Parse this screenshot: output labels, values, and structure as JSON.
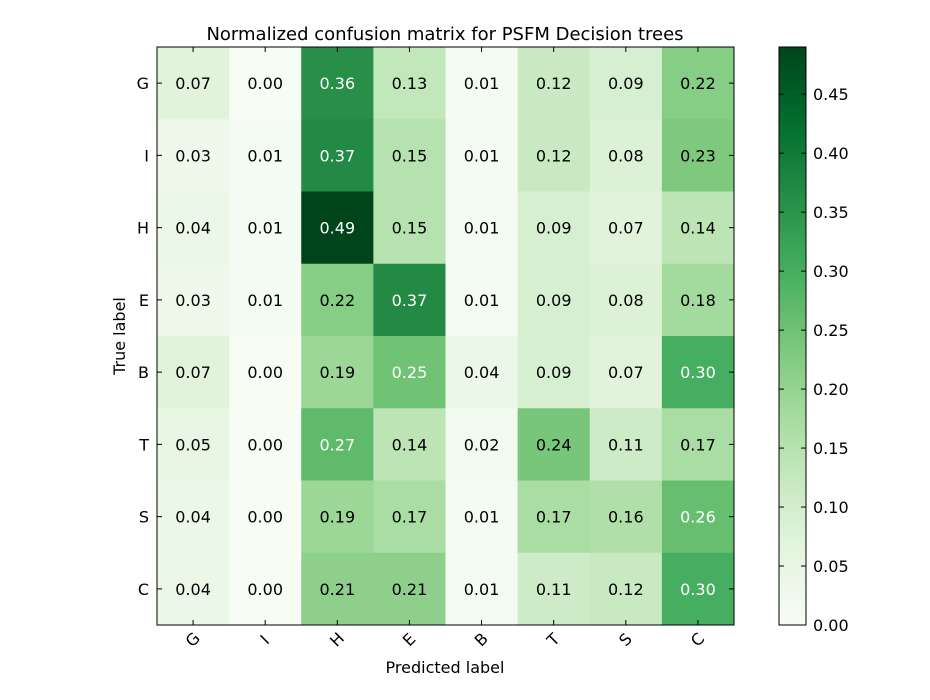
{
  "chart_data": {
    "type": "heatmap",
    "title": "Normalized confusion matrix for PSFM Decision trees",
    "xlabel": "Predicted label",
    "ylabel": "True label",
    "row_labels": [
      "G",
      "I",
      "H",
      "E",
      "B",
      "T",
      "S",
      "C"
    ],
    "col_labels": [
      "G",
      "I",
      "H",
      "E",
      "B",
      "T",
      "S",
      "C"
    ],
    "values": [
      [
        0.07,
        0.0,
        0.36,
        0.13,
        0.01,
        0.12,
        0.09,
        0.22
      ],
      [
        0.03,
        0.01,
        0.37,
        0.15,
        0.01,
        0.12,
        0.08,
        0.23
      ],
      [
        0.04,
        0.01,
        0.49,
        0.15,
        0.01,
        0.09,
        0.07,
        0.14
      ],
      [
        0.03,
        0.01,
        0.22,
        0.37,
        0.01,
        0.09,
        0.08,
        0.18
      ],
      [
        0.07,
        0.0,
        0.19,
        0.25,
        0.04,
        0.09,
        0.07,
        0.3
      ],
      [
        0.05,
        0.0,
        0.27,
        0.14,
        0.02,
        0.24,
        0.11,
        0.17
      ],
      [
        0.04,
        0.0,
        0.19,
        0.17,
        0.01,
        0.17,
        0.16,
        0.26
      ],
      [
        0.04,
        0.0,
        0.21,
        0.21,
        0.01,
        0.11,
        0.12,
        0.3
      ]
    ],
    "colormap": "Greens",
    "vmin": 0.0,
    "vmax": 0.49,
    "colorbar": {
      "ticks": [
        0.0,
        0.05,
        0.1,
        0.15,
        0.2,
        0.25,
        0.3,
        0.35,
        0.4,
        0.45
      ],
      "tick_labels": [
        "0.00",
        "0.05",
        "0.10",
        "0.15",
        "0.20",
        "0.25",
        "0.30",
        "0.35",
        "0.40",
        "0.45"
      ],
      "placement": "right"
    },
    "grid": false
  }
}
